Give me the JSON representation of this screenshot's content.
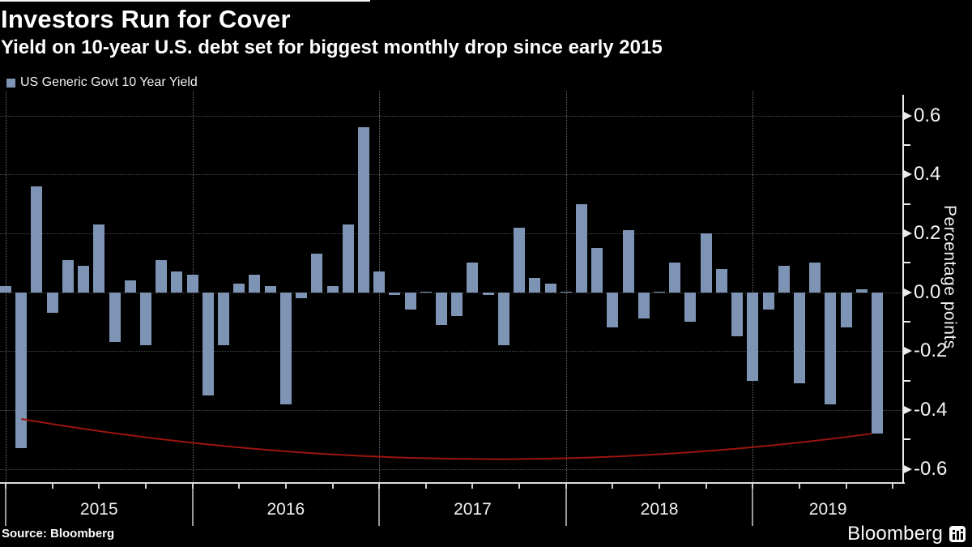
{
  "title": "Investors Run for Cover",
  "subtitle": "Yield on 10-year U.S. debt set for biggest monthly drop since early 2015",
  "legend": {
    "label": "US Generic Govt 10 Year Yield"
  },
  "source": "Source: Bloomberg",
  "brand": {
    "name": "Bloomberg",
    "mark": "bar-chart-icon"
  },
  "colors": {
    "background": "#000000",
    "bar": "#7d94b5",
    "annotation_line": "#9b1510",
    "text": "#fdfdfd",
    "grid_horizontal": "#4c4c4c",
    "grid_vertical": "#6f6f6f",
    "axis": "#ececec"
  },
  "chart_data": {
    "type": "bar",
    "title": "Investors Run for Cover",
    "subtitle": "Yield on 10-year U.S. debt set for biggest monthly drop since early 2015",
    "ylabel": "Percentage points",
    "xlabel": "",
    "ylim": [
      -0.65,
      0.68
    ],
    "grid": true,
    "legend_position": "top-left",
    "series_name": "US Generic Govt 10 Year Yield",
    "unit": "percentage points (monthly change)",
    "months": [
      "2014-12",
      "2015-01",
      "2015-02",
      "2015-03",
      "2015-04",
      "2015-05",
      "2015-06",
      "2015-07",
      "2015-08",
      "2015-09",
      "2015-10",
      "2015-11",
      "2015-12",
      "2016-01",
      "2016-02",
      "2016-03",
      "2016-04",
      "2016-05",
      "2016-06",
      "2016-07",
      "2016-08",
      "2016-09",
      "2016-10",
      "2016-11",
      "2016-12",
      "2017-01",
      "2017-02",
      "2017-03",
      "2017-04",
      "2017-05",
      "2017-06",
      "2017-07",
      "2017-08",
      "2017-09",
      "2017-10",
      "2017-11",
      "2017-12",
      "2018-01",
      "2018-02",
      "2018-03",
      "2018-04",
      "2018-05",
      "2018-06",
      "2018-07",
      "2018-08",
      "2018-09",
      "2018-10",
      "2018-11",
      "2018-12",
      "2019-01",
      "2019-02",
      "2019-03",
      "2019-04",
      "2019-05",
      "2019-06",
      "2019-07",
      "2019-08"
    ],
    "values": [
      0.02,
      -0.53,
      0.36,
      -0.07,
      0.11,
      0.09,
      0.23,
      -0.17,
      0.04,
      -0.18,
      0.11,
      0.07,
      0.06,
      -0.35,
      -0.18,
      0.03,
      0.06,
      0.02,
      -0.38,
      -0.02,
      0.13,
      0.02,
      0.23,
      0.56,
      0.07,
      -0.01,
      -0.06,
      0.0,
      -0.11,
      -0.08,
      0.1,
      -0.01,
      -0.18,
      0.22,
      0.05,
      0.03,
      0.0,
      0.3,
      0.15,
      -0.12,
      0.21,
      -0.09,
      0.0,
      0.1,
      -0.1,
      0.2,
      0.08,
      -0.15,
      -0.3,
      -0.06,
      0.09,
      -0.31,
      0.1,
      -0.38,
      -0.12,
      0.01,
      -0.48
    ],
    "y_ticks_major": [
      0.6,
      0.4,
      0.2,
      0.0,
      -0.2,
      -0.4,
      -0.6
    ],
    "y_tick_labels": [
      "0.6",
      "0.4",
      "0.2",
      "0.0",
      "-0.2",
      "-0.4",
      "-0.6"
    ],
    "y_ticks_minor": [
      0.5,
      0.3,
      0.1,
      -0.1,
      -0.3,
      -0.5
    ],
    "year_labels": [
      "2015",
      "2016",
      "2017",
      "2018",
      "2019"
    ],
    "annotation": {
      "shape": "arc",
      "from_month": "2015-01",
      "from_value": -0.43,
      "to_month": "2019-08",
      "to_value": -0.48,
      "control_value": -0.675,
      "meaning": "links Jan-2015 drop to Aug-2019 drop (biggest since early 2015)"
    }
  }
}
